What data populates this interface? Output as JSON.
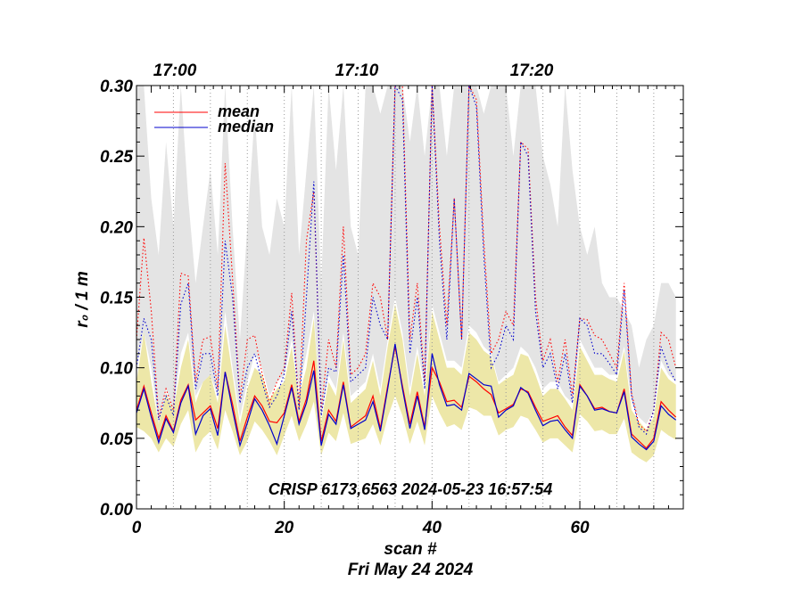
{
  "chart_data": {
    "type": "line",
    "title": "",
    "xlabel": "scan #",
    "xlabel2": "Fri May 24 2024",
    "ylabel": "r₀ / 1 m",
    "annotation": "CRISP 6173,6563 2024-05-23 16:57:54",
    "xlim": [
      0,
      74
    ],
    "ylim": [
      0.0,
      0.3
    ],
    "x_ticks": [
      0,
      20,
      40,
      60
    ],
    "x_tick_labels": [
      "0",
      "20",
      "40",
      "60"
    ],
    "y_ticks": [
      0.0,
      0.05,
      0.1,
      0.15,
      0.2,
      0.25,
      0.3
    ],
    "y_tick_labels": [
      "0.00",
      "0.05",
      "0.10",
      "0.15",
      "0.20",
      "0.25",
      "0.30"
    ],
    "top_axis": {
      "ticks": [
        2,
        30,
        54
      ],
      "labels": [
        "17:00",
        "17:10",
        "17:20"
      ]
    },
    "vertical_guides": [
      5,
      10,
      15,
      20,
      25,
      30,
      35,
      40,
      45,
      50,
      55,
      60,
      65,
      70
    ],
    "legend": [
      {
        "name": "mean",
        "color": "#ff0000"
      },
      {
        "name": "median",
        "color": "#0000cc"
      }
    ],
    "colors": {
      "mean": "#ff0000",
      "median": "#0000cc",
      "band_low": "#ede7a8",
      "band_high": "#e4e4e4",
      "guide": "#999999"
    },
    "series": [
      {
        "name": "mean",
        "style": "solid",
        "values": [
          0.07,
          0.087,
          0.068,
          0.05,
          0.066,
          0.055,
          0.077,
          0.088,
          0.063,
          0.068,
          0.073,
          0.057,
          0.097,
          0.074,
          0.048,
          0.065,
          0.08,
          0.073,
          0.062,
          0.061,
          0.068,
          0.088,
          0.062,
          0.078,
          0.105,
          0.048,
          0.07,
          0.062,
          0.09,
          0.058,
          0.062,
          0.066,
          0.08,
          0.057,
          0.087,
          0.115,
          0.087,
          0.06,
          0.083,
          0.058,
          0.1,
          0.09,
          0.076,
          0.077,
          0.072,
          0.094,
          0.09,
          0.085,
          0.081,
          0.068,
          0.071,
          0.074,
          0.085,
          0.083,
          0.072,
          0.062,
          0.064,
          0.066,
          0.058,
          0.052,
          0.088,
          0.08,
          0.071,
          0.072,
          0.069,
          0.068,
          0.085,
          0.053,
          0.048,
          0.043,
          0.05,
          0.076,
          0.07,
          0.065
        ]
      },
      {
        "name": "median",
        "style": "solid",
        "values": [
          0.068,
          0.085,
          0.065,
          0.047,
          0.064,
          0.054,
          0.075,
          0.087,
          0.053,
          0.066,
          0.071,
          0.052,
          0.097,
          0.07,
          0.045,
          0.061,
          0.078,
          0.07,
          0.059,
          0.046,
          0.066,
          0.086,
          0.06,
          0.075,
          0.098,
          0.045,
          0.067,
          0.06,
          0.088,
          0.057,
          0.06,
          0.063,
          0.076,
          0.055,
          0.085,
          0.117,
          0.085,
          0.057,
          0.08,
          0.056,
          0.11,
          0.088,
          0.073,
          0.074,
          0.07,
          0.096,
          0.092,
          0.088,
          0.087,
          0.065,
          0.07,
          0.073,
          0.086,
          0.082,
          0.07,
          0.059,
          0.062,
          0.063,
          0.056,
          0.05,
          0.087,
          0.08,
          0.07,
          0.071,
          0.069,
          0.068,
          0.083,
          0.051,
          0.046,
          0.042,
          0.048,
          0.073,
          0.067,
          0.063
        ]
      },
      {
        "name": "mean_dotted",
        "style": "dotted",
        "values": [
          0.12,
          0.192,
          0.14,
          0.065,
          0.085,
          0.07,
          0.167,
          0.165,
          0.09,
          0.12,
          0.122,
          0.085,
          0.245,
          0.163,
          0.078,
          0.12,
          0.123,
          0.096,
          0.075,
          0.09,
          0.1,
          0.153,
          0.072,
          0.19,
          0.225,
          0.07,
          0.12,
          0.1,
          0.2,
          0.095,
          0.1,
          0.11,
          0.16,
          0.15,
          0.12,
          0.3,
          0.3,
          0.12,
          0.16,
          0.09,
          0.3,
          0.2,
          0.13,
          0.22,
          0.12,
          0.3,
          0.29,
          0.19,
          0.11,
          0.12,
          0.14,
          0.13,
          0.26,
          0.255,
          0.15,
          0.105,
          0.12,
          0.09,
          0.12,
          0.08,
          0.135,
          0.134,
          0.123,
          0.12,
          0.11,
          0.1,
          0.16,
          0.082,
          0.06,
          0.055,
          0.07,
          0.125,
          0.12,
          0.1
        ]
      },
      {
        "name": "median_dotted",
        "style": "dotted",
        "values": [
          0.1,
          0.135,
          0.12,
          0.063,
          0.08,
          0.066,
          0.145,
          0.16,
          0.085,
          0.11,
          0.11,
          0.08,
          0.19,
          0.15,
          0.075,
          0.1,
          0.11,
          0.09,
          0.072,
          0.08,
          0.096,
          0.14,
          0.07,
          0.15,
          0.232,
          0.066,
          0.1,
          0.097,
          0.18,
          0.09,
          0.095,
          0.1,
          0.15,
          0.13,
          0.12,
          0.3,
          0.29,
          0.11,
          0.15,
          0.085,
          0.3,
          0.19,
          0.12,
          0.22,
          0.12,
          0.3,
          0.285,
          0.18,
          0.1,
          0.11,
          0.13,
          0.12,
          0.26,
          0.25,
          0.14,
          0.1,
          0.11,
          0.085,
          0.11,
          0.075,
          0.135,
          0.13,
          0.11,
          0.11,
          0.103,
          0.095,
          0.155,
          0.08,
          0.058,
          0.053,
          0.07,
          0.115,
          0.1,
          0.09
        ]
      },
      {
        "name": "band_low",
        "style": "fill",
        "lower": [
          0.058,
          0.055,
          0.05,
          0.04,
          0.05,
          0.044,
          0.06,
          0.07,
          0.04,
          0.05,
          0.055,
          0.042,
          0.07,
          0.055,
          0.038,
          0.048,
          0.062,
          0.056,
          0.048,
          0.038,
          0.052,
          0.066,
          0.048,
          0.06,
          0.076,
          0.038,
          0.054,
          0.048,
          0.068,
          0.046,
          0.048,
          0.05,
          0.06,
          0.045,
          0.065,
          0.08,
          0.066,
          0.046,
          0.062,
          0.045,
          0.08,
          0.068,
          0.058,
          0.06,
          0.056,
          0.072,
          0.07,
          0.066,
          0.066,
          0.052,
          0.056,
          0.058,
          0.066,
          0.064,
          0.056,
          0.047,
          0.05,
          0.05,
          0.045,
          0.04,
          0.067,
          0.062,
          0.055,
          0.056,
          0.053,
          0.053,
          0.064,
          0.04,
          0.036,
          0.033,
          0.038,
          0.056,
          0.052,
          0.049
        ],
        "upper": [
          0.09,
          0.125,
          0.09,
          0.06,
          0.082,
          0.07,
          0.1,
          0.12,
          0.075,
          0.09,
          0.095,
          0.075,
          0.13,
          0.095,
          0.06,
          0.085,
          0.1,
          0.095,
          0.078,
          0.085,
          0.09,
          0.115,
          0.08,
          0.1,
          0.135,
          0.062,
          0.09,
          0.08,
          0.12,
          0.075,
          0.08,
          0.085,
          0.105,
          0.08,
          0.115,
          0.145,
          0.12,
          0.08,
          0.11,
          0.08,
          0.14,
          0.12,
          0.1,
          0.1,
          0.095,
          0.125,
          0.12,
          0.112,
          0.108,
          0.088,
          0.092,
          0.095,
          0.11,
          0.108,
          0.095,
          0.08,
          0.085,
          0.085,
          0.078,
          0.07,
          0.115,
          0.105,
          0.095,
          0.095,
          0.092,
          0.09,
          0.112,
          0.07,
          0.062,
          0.056,
          0.065,
          0.1,
          0.092,
          0.088
        ]
      },
      {
        "name": "band_high",
        "style": "fill",
        "lower": [
          0.1,
          0.125,
          0.1,
          0.06,
          0.085,
          0.07,
          0.11,
          0.125,
          0.08,
          0.09,
          0.095,
          0.08,
          0.14,
          0.1,
          0.065,
          0.09,
          0.11,
          0.1,
          0.08,
          0.09,
          0.095,
          0.12,
          0.085,
          0.11,
          0.14,
          0.065,
          0.095,
          0.085,
          0.125,
          0.08,
          0.085,
          0.09,
          0.11,
          0.085,
          0.12,
          0.15,
          0.125,
          0.085,
          0.115,
          0.085,
          0.145,
          0.125,
          0.105,
          0.105,
          0.1,
          0.13,
          0.125,
          0.115,
          0.11,
          0.09,
          0.095,
          0.1,
          0.115,
          0.11,
          0.1,
          0.085,
          0.09,
          0.09,
          0.08,
          0.075,
          0.12,
          0.11,
          0.1,
          0.1,
          0.095,
          0.095,
          0.115,
          0.075,
          0.065,
          0.06,
          0.07,
          0.105,
          0.095,
          0.09
        ],
        "upper": [
          0.3,
          0.3,
          0.22,
          0.18,
          0.26,
          0.2,
          0.3,
          0.22,
          0.16,
          0.2,
          0.24,
          0.18,
          0.3,
          0.2,
          0.12,
          0.2,
          0.28,
          0.2,
          0.18,
          0.22,
          0.2,
          0.3,
          0.18,
          0.24,
          0.3,
          0.16,
          0.3,
          0.24,
          0.3,
          0.2,
          0.18,
          0.3,
          0.3,
          0.28,
          0.3,
          0.3,
          0.3,
          0.26,
          0.3,
          0.25,
          0.3,
          0.3,
          0.25,
          0.3,
          0.3,
          0.3,
          0.3,
          0.28,
          0.3,
          0.3,
          0.3,
          0.25,
          0.3,
          0.3,
          0.3,
          0.25,
          0.23,
          0.2,
          0.3,
          0.24,
          0.2,
          0.18,
          0.2,
          0.16,
          0.15,
          0.15,
          0.14,
          0.13,
          0.1,
          0.12,
          0.13,
          0.16,
          0.16,
          0.15
        ]
      }
    ]
  }
}
